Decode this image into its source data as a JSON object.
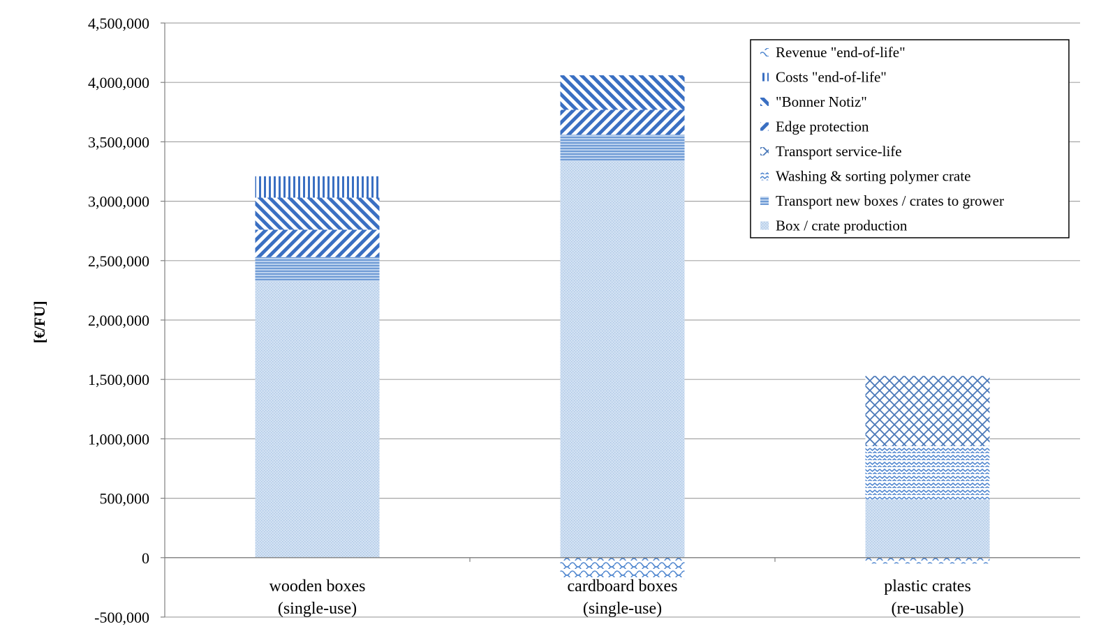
{
  "chart_data": {
    "type": "bar",
    "stacked": true,
    "title": "",
    "xlabel": "",
    "ylabel": "[€/FU]",
    "ylim": [
      -500000,
      4500000
    ],
    "yticks": [
      "4,500,000",
      "4,000,000",
      "3,500,000",
      "3,000,000",
      "2,500,000",
      "2,000,000",
      "1,500,000",
      "1,000,000",
      "500,000",
      "0",
      "-500,000"
    ],
    "categories": [
      {
        "line1": "wooden boxes",
        "line2": "(single-use)"
      },
      {
        "line1": "cardboard boxes",
        "line2": "(single-use)"
      },
      {
        "line1": "plastic crates",
        "line2": "(re-usable)"
      }
    ],
    "grid": true,
    "legend_position": "top-right",
    "series": [
      {
        "name": "Box / crate production",
        "color": "#c6d9ef",
        "pattern": "dots",
        "values": [
          2330000,
          3340000,
          490000
        ]
      },
      {
        "name": "Transport new boxes / crates to grower",
        "color": "#7aa5d8",
        "pattern": "horizontal",
        "values": [
          200000,
          220000,
          0
        ]
      },
      {
        "name": "Washing & sorting polymer crate",
        "color": "#5b8ccc",
        "pattern": "wave",
        "values": [
          0,
          0,
          450000
        ]
      },
      {
        "name": "Transport service-life",
        "color": "#4a78b8",
        "pattern": "diamond",
        "values": [
          0,
          0,
          590000
        ]
      },
      {
        "name": "Edge protection",
        "color": "#3a6fc2",
        "pattern": "up-diagonal",
        "values": [
          230000,
          210000,
          0
        ]
      },
      {
        "name": "\"Bonner Notiz\"",
        "color": "#3a6fc2",
        "pattern": "down-diagonal",
        "values": [
          270000,
          290000,
          0
        ]
      },
      {
        "name": "Costs \"end-of-life\"",
        "color": "#3a6fc2",
        "pattern": "vertical",
        "values": [
          180000,
          0,
          0
        ]
      },
      {
        "name": "Revenue \"end-of-life\"",
        "color": "#6a9ad2",
        "pattern": "scales",
        "values": [
          0,
          -180000,
          -50000
        ]
      }
    ],
    "legend_order": [
      "Revenue \"end-of-life\"",
      "Costs \"end-of-life\"",
      "\"Bonner Notiz\"",
      "Edge protection",
      "Transport service-life",
      "Washing & sorting polymer crate",
      "Transport new boxes / crates to grower",
      "Box / crate production"
    ]
  }
}
